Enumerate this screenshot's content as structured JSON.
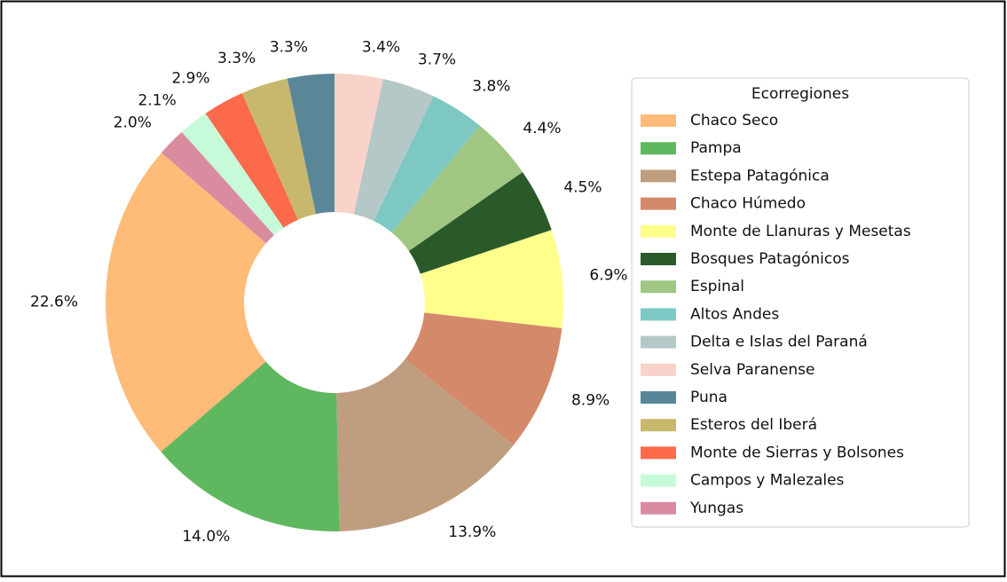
{
  "chart_data": {
    "type": "donut",
    "categories": [
      "Chaco Seco",
      "Pampa",
      "Estepa Patagónica",
      "Chaco Húmedo",
      "Monte de Llanuras y Mesetas",
      "Bosques Patagónicos",
      "Espinal",
      "Altos Andes",
      "Delta e Islas del Paraná",
      "Selva Paranense",
      "Puna",
      "Esteros del Iberá",
      "Monte de Sierras y Bolsones",
      "Campos y Malezales",
      "Yungas"
    ],
    "values": [
      22.6,
      14.0,
      13.9,
      8.9,
      6.9,
      4.5,
      4.4,
      3.8,
      3.7,
      3.4,
      3.3,
      3.3,
      2.9,
      2.1,
      2.0
    ],
    "value_labels": [
      "22.6%",
      "14.0%",
      "13.9%",
      "8.9%",
      "6.9%",
      "4.5%",
      "4.4%",
      "3.8%",
      "3.7%",
      "3.4%",
      "3.3%",
      "3.3%",
      "2.9%",
      "2.1%",
      "2.0%"
    ],
    "colors": [
      "#ffbb78",
      "#5fb85f",
      "#bf9e80",
      "#d4896a",
      "#ffff8c",
      "#2a5a2a",
      "#9fc782",
      "#7ec8c4",
      "#b4c8c8",
      "#f9d2ca",
      "#5a8798",
      "#c8b86e",
      "#fb6a4a",
      "#c7fad9",
      "#d98ca0"
    ],
    "legend_title": "Ecorregiones",
    "legend": "right"
  }
}
